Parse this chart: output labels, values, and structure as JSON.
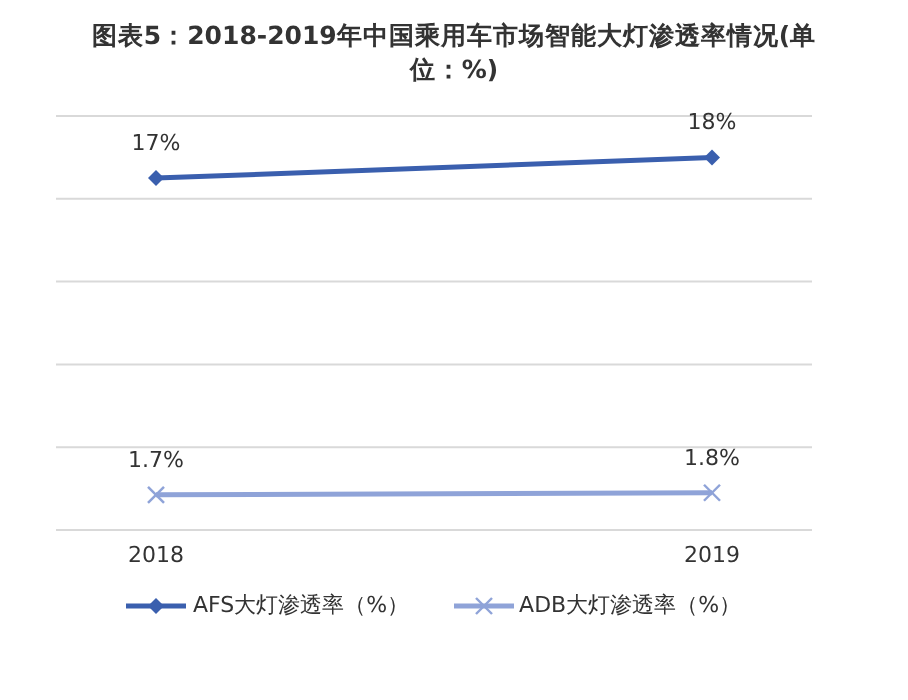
{
  "chart_data": {
    "type": "line",
    "title": "图表5：2018-2019年中国乘用车市场智能大灯渗透率情况(单位：%)",
    "categories": [
      "2018",
      "2019"
    ],
    "series": [
      {
        "name": "AFS大灯渗透率（%）",
        "color": "#3a5fae",
        "values": [
          17,
          18
        ],
        "value_labels": [
          "17%",
          "18%"
        ],
        "marker": "diamond"
      },
      {
        "name": "ADB大灯渗透率（%）",
        "color": "#8fa3d8",
        "values": [
          1.7,
          1.8
        ],
        "value_labels": [
          "1.7%",
          "1.8%"
        ],
        "marker": "cross"
      }
    ],
    "grid": "y",
    "legend": "bottom",
    "tick_labels": "x"
  }
}
